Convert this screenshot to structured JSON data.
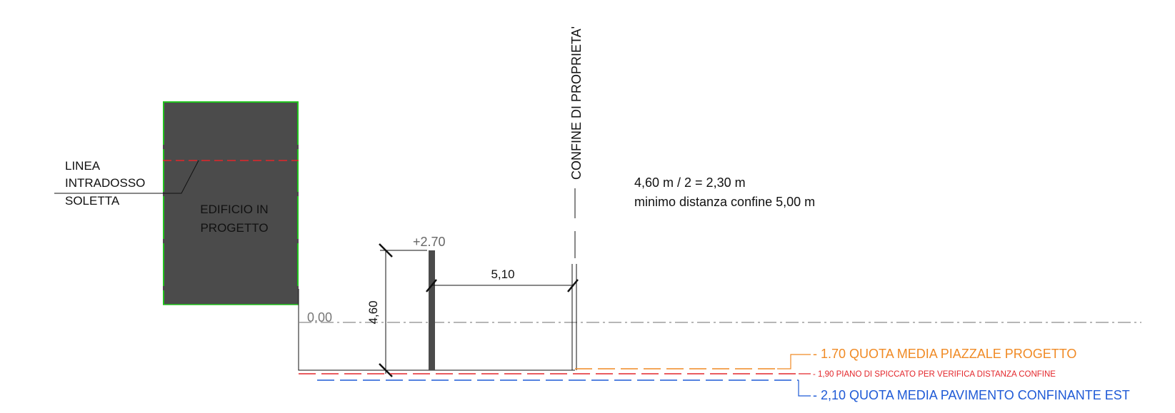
{
  "section": {
    "building_label_line1": "EDIFICIO IN",
    "building_label_line2": "PROGETTO",
    "soffit_label_line1": "LINEA",
    "soffit_label_line2": "INTRADOSSO",
    "soffit_label_line3": "SOLETTA",
    "boundary_label": "CONFINE DI PROPRIETA'",
    "calc_line1": "4,60 m / 2 = 2,30 m",
    "calc_line2": "minimo distanza confine 5,00 m",
    "wall_height_label": "+2.70",
    "zero_level_label": "0.00",
    "dim_distance": "5,10",
    "dim_height": "4,60"
  },
  "levels": [
    {
      "label": "- 1.70 QUOTA MEDIA PIAZZALE PROGETTO",
      "color": "#f08a24"
    },
    {
      "label": "- 1,90 PIANO DI SPICCATO PER VERIFICA DISTANZA CONFINE",
      "color": "#e3262b"
    },
    {
      "label": "- 2,10 QUOTA MEDIA PAVIMENTO CONFINANTE EST",
      "color": "#1f5ad6"
    }
  ],
  "colors": {
    "building_fill": "#4b4b4b",
    "building_edge": "#22c21f",
    "soffit_line": "#e3262b",
    "axis_line": "#8a8a8a",
    "ink": "#111111"
  }
}
